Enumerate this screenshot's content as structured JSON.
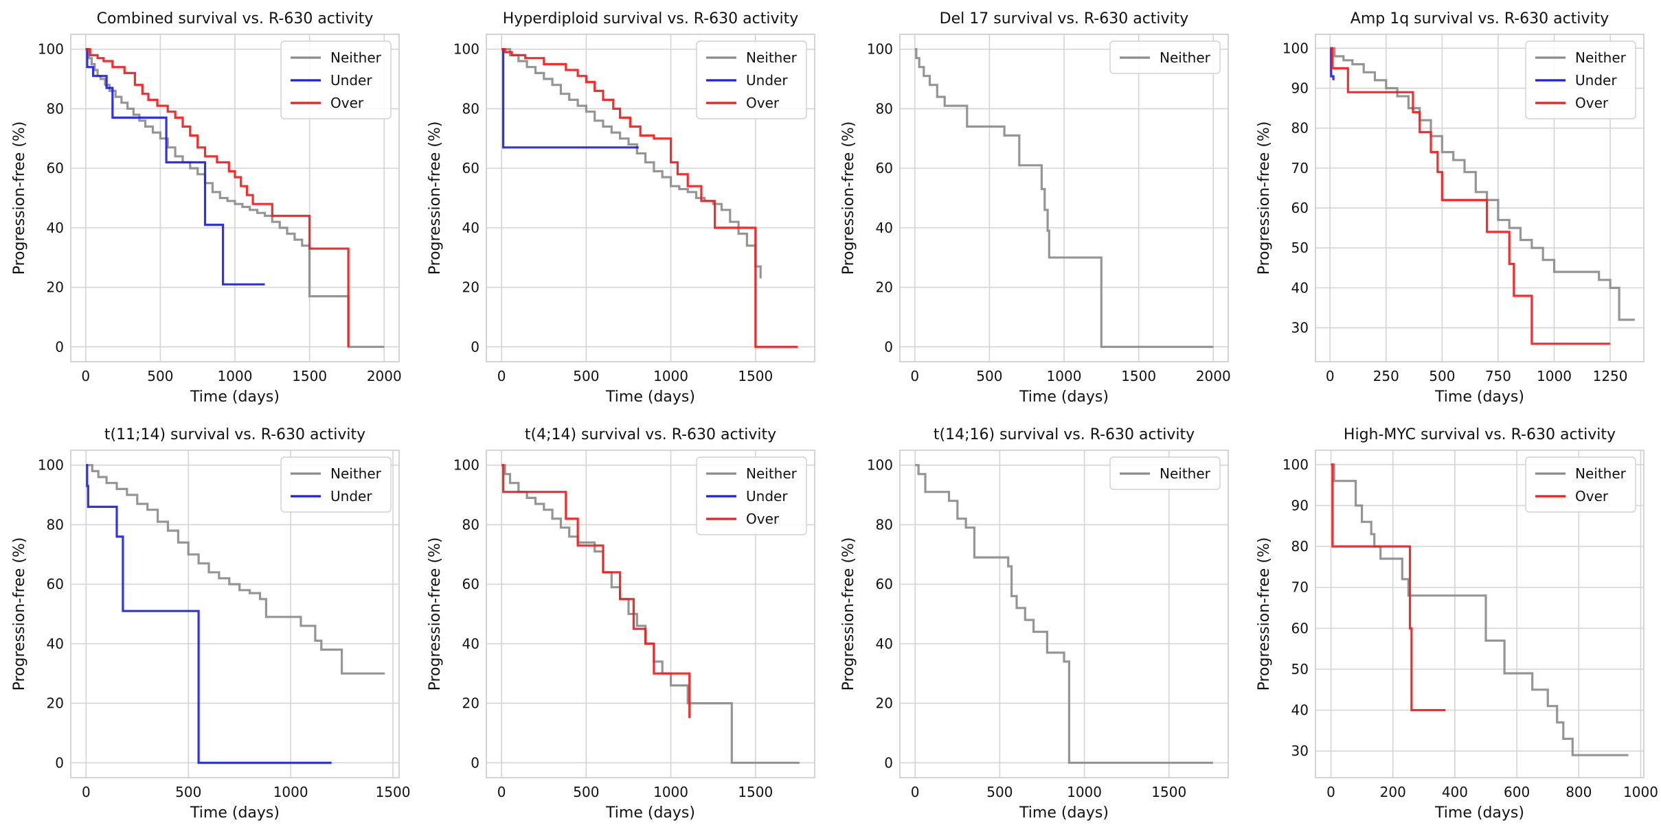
{
  "figure": {
    "colors": {
      "Neither": "#8c8c8c",
      "Under": "#1f1fe6",
      "Over": "#f21c1c",
      "grid": "#d4d4d4",
      "frame": "#cfcfcf"
    }
  },
  "chart_data": [
    {
      "type": "line",
      "title": "Combined survival vs. R-630 activity",
      "xlabel": "Time (days)",
      "ylabel": "Progression-free (%)",
      "xlim": [
        -100,
        2100
      ],
      "ylim": [
        -5,
        105
      ],
      "xticks": [
        0,
        500,
        1000,
        1500,
        2000
      ],
      "yticks": [
        0,
        20,
        40,
        60,
        80,
        100
      ],
      "legend": [
        "Neither",
        "Under",
        "Over"
      ],
      "series": [
        {
          "name": "Neither",
          "x": [
            0,
            20,
            40,
            60,
            80,
            100,
            130,
            160,
            200,
            240,
            280,
            320,
            360,
            400,
            450,
            500,
            550,
            600,
            650,
            700,
            750,
            800,
            850,
            900,
            950,
            1000,
            1050,
            1100,
            1150,
            1200,
            1250,
            1300,
            1350,
            1400,
            1450,
            1500,
            1760,
            2000
          ],
          "y": [
            100,
            97,
            95,
            93,
            91,
            90,
            88,
            86,
            84,
            82,
            80,
            78,
            76,
            74,
            72,
            70,
            67,
            64,
            62,
            60,
            58,
            55,
            52,
            50,
            49,
            48,
            47,
            46,
            45,
            44,
            42,
            40,
            38,
            36,
            34,
            17,
            0,
            0
          ]
        },
        {
          "name": "Under",
          "x": [
            0,
            10,
            50,
            140,
            180,
            540,
            800,
            920,
            1200
          ],
          "y": [
            100,
            94,
            91,
            87,
            77,
            62,
            41,
            21,
            21
          ]
        },
        {
          "name": "Over",
          "x": [
            0,
            30,
            80,
            120,
            180,
            260,
            330,
            380,
            420,
            480,
            550,
            600,
            650,
            700,
            750,
            800,
            880,
            960,
            1000,
            1040,
            1080,
            1120,
            1250,
            1500,
            1760
          ],
          "y": [
            100,
            98,
            97,
            96,
            94,
            92,
            88,
            85,
            83,
            81,
            79,
            77,
            74,
            71,
            67,
            64,
            62,
            59,
            57,
            54,
            51,
            48,
            44,
            33,
            0
          ]
        }
      ]
    },
    {
      "type": "line",
      "title": "Hyperdiploid survival vs. R-630 activity",
      "xlabel": "Time (days)",
      "ylabel": "Progression-free (%)",
      "xlim": [
        -90,
        1850
      ],
      "ylim": [
        -5,
        105
      ],
      "xticks": [
        0,
        500,
        1000,
        1500
      ],
      "yticks": [
        0,
        20,
        40,
        60,
        80,
        100
      ],
      "legend": [
        "Neither",
        "Under",
        "Over"
      ],
      "series": [
        {
          "name": "Neither",
          "x": [
            0,
            50,
            100,
            150,
            200,
            250,
            300,
            350,
            400,
            450,
            500,
            550,
            600,
            650,
            700,
            750,
            800,
            850,
            900,
            950,
            1000,
            1050,
            1100,
            1150,
            1200,
            1250,
            1300,
            1350,
            1400,
            1450,
            1500,
            1530
          ],
          "y": [
            100,
            98,
            96,
            94,
            92,
            90,
            88,
            85,
            83,
            81,
            79,
            76,
            74,
            72,
            70,
            68,
            65,
            62,
            59,
            57,
            54,
            53,
            52,
            50,
            49,
            48,
            46,
            42,
            38,
            34,
            27,
            23
          ]
        },
        {
          "name": "Under",
          "x": [
            0,
            10,
            810
          ],
          "y": [
            100,
            67,
            67
          ]
        },
        {
          "name": "Over",
          "x": [
            0,
            20,
            60,
            140,
            250,
            380,
            450,
            500,
            550,
            600,
            660,
            700,
            760,
            820,
            900,
            1000,
            1040,
            1100,
            1180,
            1260,
            1500,
            1750
          ],
          "y": [
            100,
            99,
            98,
            97,
            95,
            93,
            91,
            89,
            86,
            83,
            80,
            77,
            74,
            71,
            70,
            62,
            58,
            54,
            49,
            40,
            0,
            0
          ]
        }
      ]
    },
    {
      "type": "line",
      "title": "Del 17 survival vs. R-630 activity",
      "xlabel": "Time (days)",
      "ylabel": "Progression-free (%)",
      "xlim": [
        -100,
        2100
      ],
      "ylim": [
        -5,
        105
      ],
      "xticks": [
        0,
        500,
        1000,
        1500,
        2000
      ],
      "yticks": [
        0,
        20,
        40,
        60,
        80,
        100
      ],
      "legend": [
        "Neither"
      ],
      "series": [
        {
          "name": "Neither",
          "x": [
            0,
            10,
            30,
            60,
            100,
            150,
            200,
            350,
            500,
            600,
            700,
            850,
            870,
            890,
            900,
            1250,
            2000
          ],
          "y": [
            100,
            97,
            94,
            91,
            88,
            84,
            81,
            74,
            74,
            71,
            61,
            53,
            46,
            39,
            30,
            0,
            0
          ]
        }
      ]
    },
    {
      "type": "line",
      "title": "Amp 1q survival vs. R-630 activity",
      "xlabel": "Time (days)",
      "ylabel": "Progression-free (%)",
      "xlim": [
        -65,
        1400
      ],
      "ylim": [
        21.5,
        103.5
      ],
      "xticks": [
        0,
        250,
        500,
        750,
        1000,
        1250
      ],
      "yticks": [
        30,
        40,
        50,
        60,
        70,
        80,
        90,
        100
      ],
      "legend": [
        "Neither",
        "Under",
        "Over"
      ],
      "series": [
        {
          "name": "Neither",
          "x": [
            0,
            20,
            60,
            100,
            150,
            200,
            250,
            300,
            350,
            400,
            450,
            500,
            550,
            600,
            650,
            700,
            750,
            800,
            850,
            900,
            950,
            1000,
            1050,
            1100,
            1150,
            1200,
            1250,
            1290,
            1360
          ],
          "y": [
            100,
            98,
            97,
            96,
            94,
            92,
            90,
            88,
            85,
            82,
            78,
            74,
            72,
            69,
            64,
            62,
            57,
            55,
            52,
            50,
            47,
            44,
            44,
            44,
            44,
            42,
            40,
            32,
            32
          ]
        },
        {
          "name": "Under",
          "x": [
            0,
            5,
            15
          ],
          "y": [
            100,
            93,
            92
          ]
        },
        {
          "name": "Over",
          "x": [
            0,
            10,
            80,
            250,
            370,
            400,
            450,
            480,
            500,
            620,
            700,
            800,
            820,
            900,
            1250
          ],
          "y": [
            100,
            95,
            89,
            89,
            84,
            79,
            74,
            69,
            62,
            62,
            54,
            46,
            38,
            26,
            26
          ]
        }
      ]
    },
    {
      "type": "line",
      "title": "t(11;14) survival vs. R-630 activity",
      "xlabel": "Time (days)",
      "ylabel": "Progression-free (%)",
      "xlim": [
        -75,
        1530
      ],
      "ylim": [
        -5,
        105
      ],
      "xticks": [
        0,
        500,
        1000,
        1500
      ],
      "yticks": [
        0,
        20,
        40,
        60,
        80,
        100
      ],
      "legend": [
        "Neither",
        "Under"
      ],
      "series": [
        {
          "name": "Neither",
          "x": [
            0,
            30,
            60,
            100,
            150,
            200,
            250,
            300,
            350,
            400,
            450,
            500,
            550,
            600,
            650,
            700,
            750,
            800,
            850,
            880,
            1000,
            1050,
            1120,
            1150,
            1200,
            1250,
            1460
          ],
          "y": [
            100,
            98,
            96,
            94,
            92,
            90,
            87,
            85,
            81,
            78,
            74,
            70,
            67,
            64,
            62,
            60,
            58,
            57,
            55,
            49,
            49,
            46,
            41,
            38,
            38,
            30,
            30
          ]
        },
        {
          "name": "Under",
          "x": [
            0,
            5,
            10,
            150,
            170,
            180,
            550,
            1200
          ],
          "y": [
            100,
            93,
            86,
            76,
            76,
            51,
            0,
            0
          ]
        }
      ]
    },
    {
      "type": "line",
      "title": "t(4;14) survival vs. R-630 activity",
      "xlabel": "Time (days)",
      "ylabel": "Progression-free (%)",
      "xlim": [
        -90,
        1850
      ],
      "ylim": [
        -5,
        105
      ],
      "xticks": [
        0,
        500,
        1000,
        1500
      ],
      "yticks": [
        0,
        20,
        40,
        60,
        80,
        100
      ],
      "legend": [
        "Neither",
        "Under",
        "Over"
      ],
      "series": [
        {
          "name": "Neither",
          "x": [
            0,
            20,
            50,
            100,
            150,
            200,
            250,
            300,
            350,
            400,
            450,
            500,
            550,
            600,
            650,
            700,
            750,
            800,
            850,
            900,
            950,
            1000,
            1100,
            1360,
            1760
          ],
          "y": [
            100,
            97,
            94,
            91,
            89,
            87,
            85,
            82,
            79,
            76,
            74,
            74,
            71,
            64,
            59,
            55,
            50,
            46,
            40,
            34,
            30,
            26,
            20,
            0,
            0
          ]
        },
        {
          "name": "Over",
          "x": [
            0,
            10,
            380,
            450,
            600,
            700,
            780,
            850,
            900,
            1100,
            1110
          ],
          "y": [
            100,
            91,
            82,
            73,
            64,
            55,
            45,
            40,
            30,
            30,
            15
          ]
        }
      ]
    },
    {
      "type": "line",
      "title": "t(14;16) survival vs. R-630 activity",
      "xlabel": "Time (days)",
      "ylabel": "Progression-free (%)",
      "xlim": [
        -90,
        1850
      ],
      "ylim": [
        -5,
        105
      ],
      "xticks": [
        0,
        500,
        1000,
        1500
      ],
      "yticks": [
        0,
        20,
        40,
        60,
        80,
        100
      ],
      "legend": [
        "Neither"
      ],
      "series": [
        {
          "name": "Neither",
          "x": [
            0,
            20,
            60,
            200,
            250,
            300,
            350,
            550,
            570,
            600,
            650,
            700,
            780,
            880,
            910,
            1760
          ],
          "y": [
            100,
            97,
            91,
            88,
            82,
            79,
            69,
            66,
            56,
            52,
            48,
            44,
            37,
            34,
            0,
            0
          ]
        }
      ]
    },
    {
      "type": "line",
      "title": "High-MYC survival vs. R-630 activity",
      "xlabel": "Time (days)",
      "ylabel": "Progression-free (%)",
      "xlim": [
        -50,
        1010
      ],
      "ylim": [
        23.5,
        103.5
      ],
      "xticks": [
        0,
        200,
        400,
        600,
        800,
        1000
      ],
      "yticks": [
        30,
        40,
        50,
        60,
        70,
        80,
        90,
        100
      ],
      "legend": [
        "Neither",
        "Over"
      ],
      "series": [
        {
          "name": "Neither",
          "x": [
            0,
            10,
            80,
            100,
            130,
            140,
            160,
            230,
            250,
            470,
            500,
            560,
            650,
            700,
            730,
            750,
            780,
            960
          ],
          "y": [
            100,
            96,
            90,
            86,
            83,
            80,
            77,
            72,
            68,
            68,
            57,
            49,
            45,
            41,
            37,
            33,
            29,
            29
          ]
        },
        {
          "name": "Over",
          "x": [
            0,
            5,
            250,
            255,
            260,
            370
          ],
          "y": [
            100,
            80,
            80,
            60,
            40,
            40
          ]
        }
      ]
    }
  ]
}
